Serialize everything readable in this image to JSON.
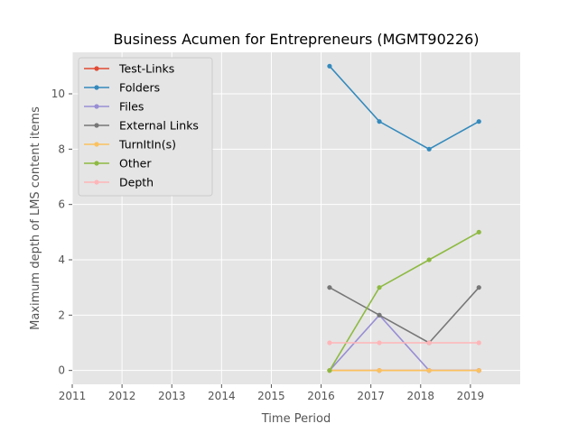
{
  "chart_data": {
    "type": "line",
    "title": "Business Acumen for Entrepreneurs (MGMT90226)",
    "xlabel": "Time Period",
    "ylabel": "Maximum depth of LMS content items",
    "xlim": [
      2011,
      2020
    ],
    "ylim": [
      -0.5,
      11.5
    ],
    "x_ticks": [
      2011,
      2012,
      2013,
      2014,
      2015,
      2016,
      2017,
      2018,
      2019
    ],
    "y_ticks": [
      0,
      2,
      4,
      6,
      8,
      10
    ],
    "grid": true,
    "legend_position": "upper-left",
    "x": [
      2016.17,
      2017.17,
      2018.17,
      2019.17
    ],
    "series": [
      {
        "name": "Test-Links",
        "color": "#E24A33",
        "values": [
          0,
          0,
          0,
          0
        ]
      },
      {
        "name": "Folders",
        "color": "#348ABD",
        "values": [
          11,
          9,
          8,
          9
        ]
      },
      {
        "name": "Files",
        "color": "#988ED5",
        "values": [
          0,
          2,
          0,
          0
        ]
      },
      {
        "name": "External Links",
        "color": "#777777",
        "values": [
          3,
          2,
          1,
          3
        ]
      },
      {
        "name": "TurnItIn(s)",
        "color": "#FBC15E",
        "values": [
          0,
          0,
          0,
          0
        ]
      },
      {
        "name": "Other",
        "color": "#8EBA42",
        "values": [
          0,
          3,
          4,
          5
        ]
      },
      {
        "name": "Depth",
        "color": "#FFB5B8",
        "values": [
          1,
          1,
          1,
          1
        ]
      }
    ]
  }
}
